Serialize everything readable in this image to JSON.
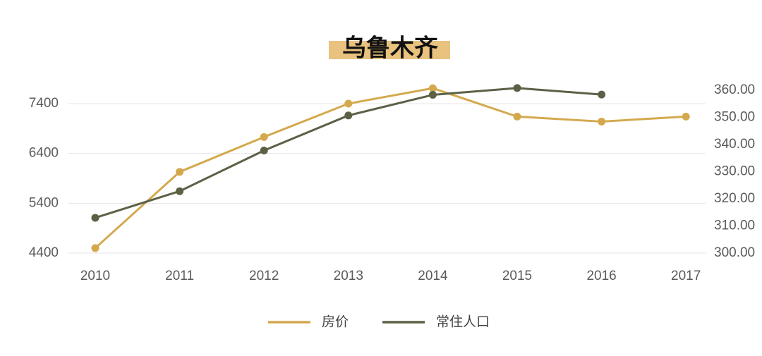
{
  "chart_data": {
    "type": "line",
    "title": "乌鲁木齐",
    "categories": [
      "2010",
      "2011",
      "2012",
      "2013",
      "2014",
      "2015",
      "2016",
      "2017"
    ],
    "y_left": {
      "ticks": [
        "7400",
        "6400",
        "5400",
        "4400"
      ],
      "range": [
        4400,
        7400
      ]
    },
    "y_right": {
      "ticks": [
        "360.00",
        "350.00",
        "340.00",
        "330.00",
        "320.00",
        "310.00",
        "300.00"
      ],
      "range": [
        300,
        360
      ]
    },
    "grid": "horizontal",
    "legend_position": "bottom-center",
    "series": [
      {
        "name": "房价",
        "axis": "left",
        "color": "#d4a94e",
        "values": [
          4500,
          6030,
          6730,
          7400,
          7710,
          7140,
          7040,
          7140
        ]
      },
      {
        "name": "常住人口",
        "axis": "right",
        "color": "#5c6146",
        "values": [
          313.0,
          322.8,
          337.8,
          350.7,
          358.3,
          360.8,
          358.4,
          null
        ]
      }
    ]
  },
  "colors": {
    "title_highlight": "#e8c27e",
    "grid": "#e6e6e6"
  }
}
